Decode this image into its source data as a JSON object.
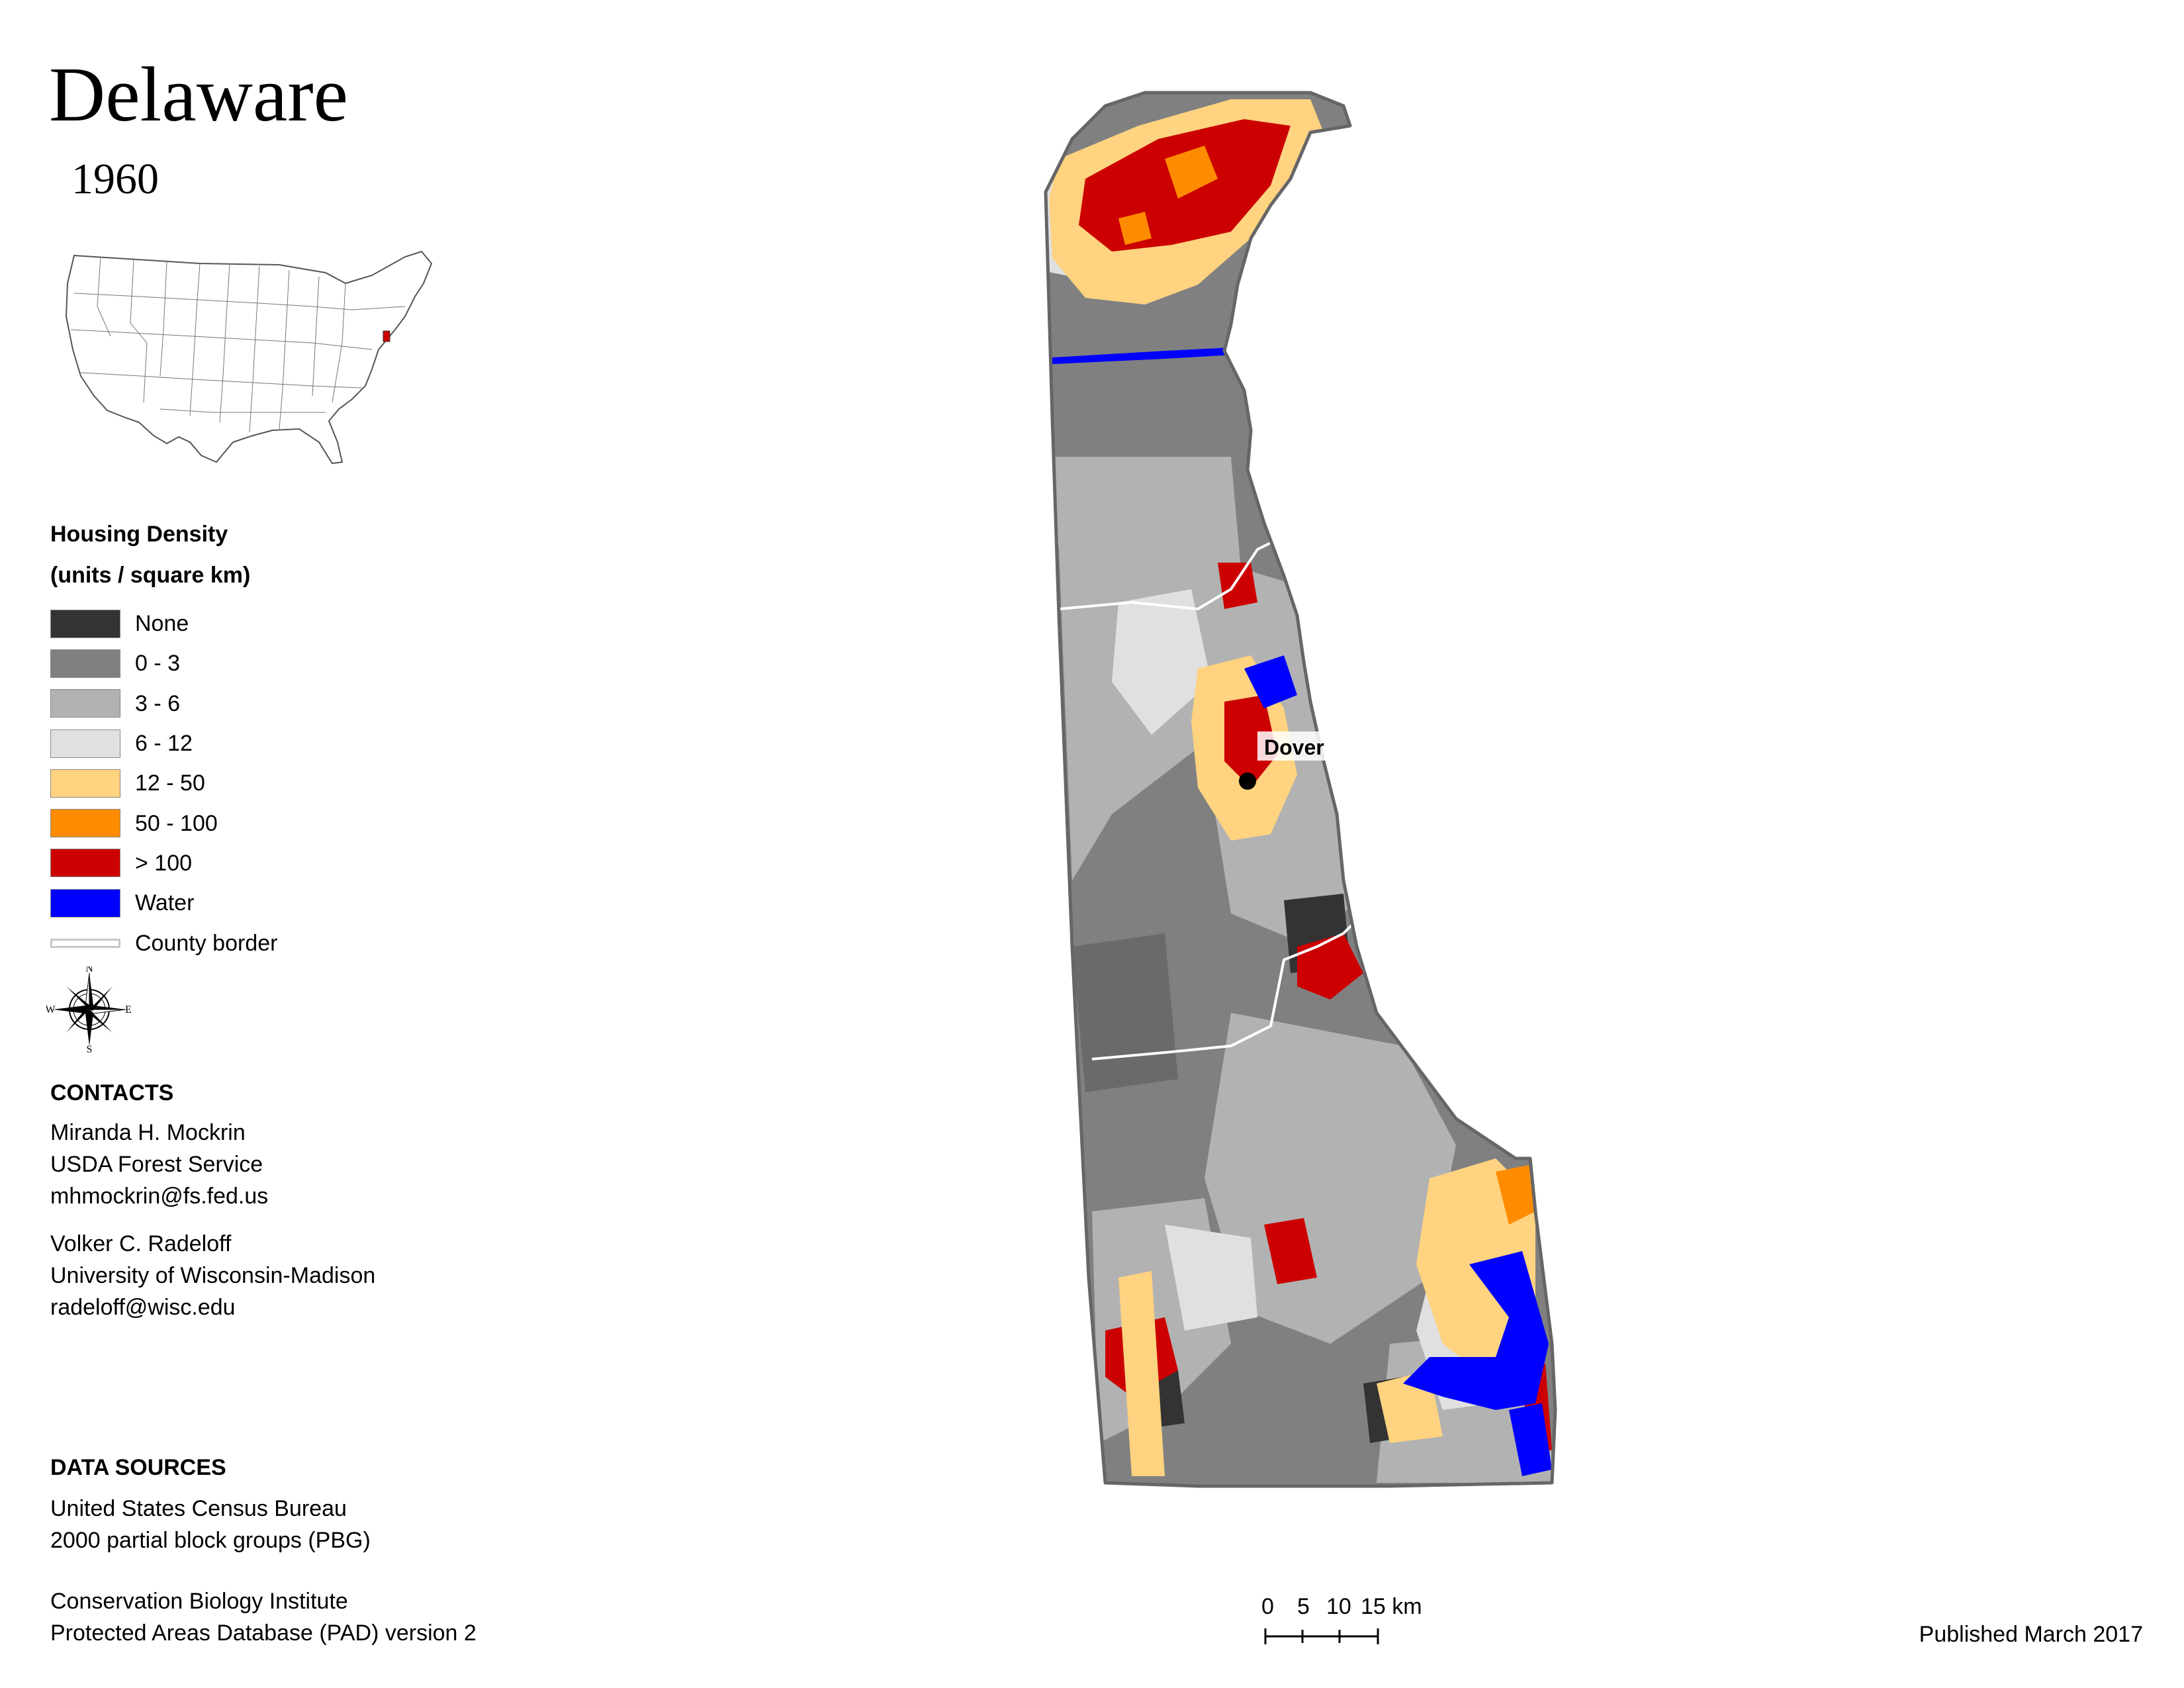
{
  "header": {
    "title": "Delaware",
    "year": "1960"
  },
  "legend": {
    "title_line1": "Housing Density",
    "title_line2": "(units / square km)",
    "items": [
      {
        "label": "None",
        "color": "#333333"
      },
      {
        "label": "0 - 3",
        "color": "#808080"
      },
      {
        "label": "3 - 6",
        "color": "#b2b2b2"
      },
      {
        "label": "6 - 12",
        "color": "#e0e0e0"
      },
      {
        "label": "12 - 50",
        "color": "#ffd380"
      },
      {
        "label": "50 - 100",
        "color": "#ff8c00"
      },
      {
        "label": "> 100",
        "color": "#cc0000"
      },
      {
        "label": "Water",
        "color": "#0000ff"
      }
    ],
    "county_border_label": "County border"
  },
  "compass": {
    "n": "N",
    "s": "S",
    "e": "E",
    "w": "W"
  },
  "contacts": {
    "heading": "CONTACTS",
    "person1": {
      "name": "Miranda H. Mockrin",
      "org": "USDA Forest Service",
      "email": "mhmockrin@fs.fed.us"
    },
    "person2": {
      "name": "Volker C. Radeloff",
      "org": "University of Wisconsin-Madison",
      "email": "radeloff@wisc.edu"
    }
  },
  "data_sources": {
    "heading": "DATA SOURCES",
    "lines": [
      "United States Census Bureau",
      "2000 partial block groups (PBG)",
      "Conservation Biology Institute",
      "Protected Areas Database (PAD) version 2"
    ]
  },
  "map": {
    "city_label": "Dover"
  },
  "scale": {
    "labels": [
      "0",
      "5",
      "10",
      "15 km"
    ]
  },
  "footer": {
    "published": "Published March 2017"
  }
}
